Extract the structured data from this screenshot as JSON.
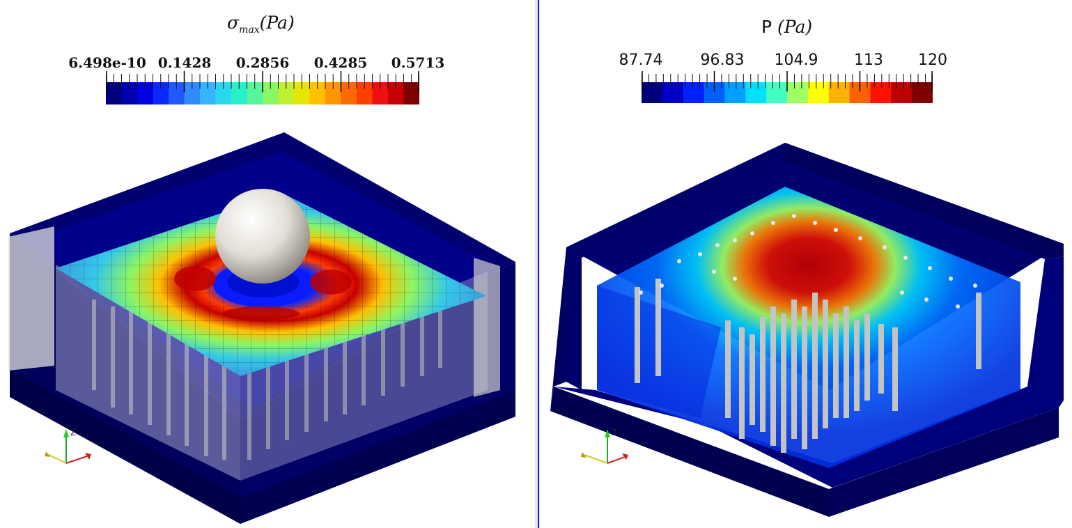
{
  "left_view": {
    "title_symbol": "σ",
    "title_subscript": "max",
    "title_unit": "(Pa)",
    "colorbar_ticks": [
      "6.498e-10",
      "0.1428",
      "0.2856",
      "0.4285",
      "0.5713"
    ],
    "colorbar_colors": [
      "#00007f",
      "#0000b0",
      "#0000e0",
      "#0a28ff",
      "#1e5aff",
      "#2e8cff",
      "#35b4ff",
      "#2ad8ee",
      "#28f0c8",
      "#55f59a",
      "#8cf564",
      "#bff032",
      "#e8e600",
      "#ffc000",
      "#ff9600",
      "#ff6a00",
      "#ff3e00",
      "#f01010",
      "#c80000",
      "#7f0000"
    ],
    "axes": {
      "z": "Z"
    }
  },
  "right_view": {
    "title_prefix": "P",
    "title_unit": "(Pa)",
    "colorbar_ticks": [
      "87.74",
      "96.83",
      "104.9",
      "113",
      "120"
    ],
    "colorbar_colors": [
      "#00007f",
      "#0000c8",
      "#0020ff",
      "#0060ff",
      "#00a0ff",
      "#00e0ff",
      "#40ffc0",
      "#a0ff60",
      "#ffff00",
      "#ffb000",
      "#ff6000",
      "#ff1000",
      "#c00000",
      "#7f0000"
    ],
    "axes": {
      "z": "Z"
    }
  }
}
